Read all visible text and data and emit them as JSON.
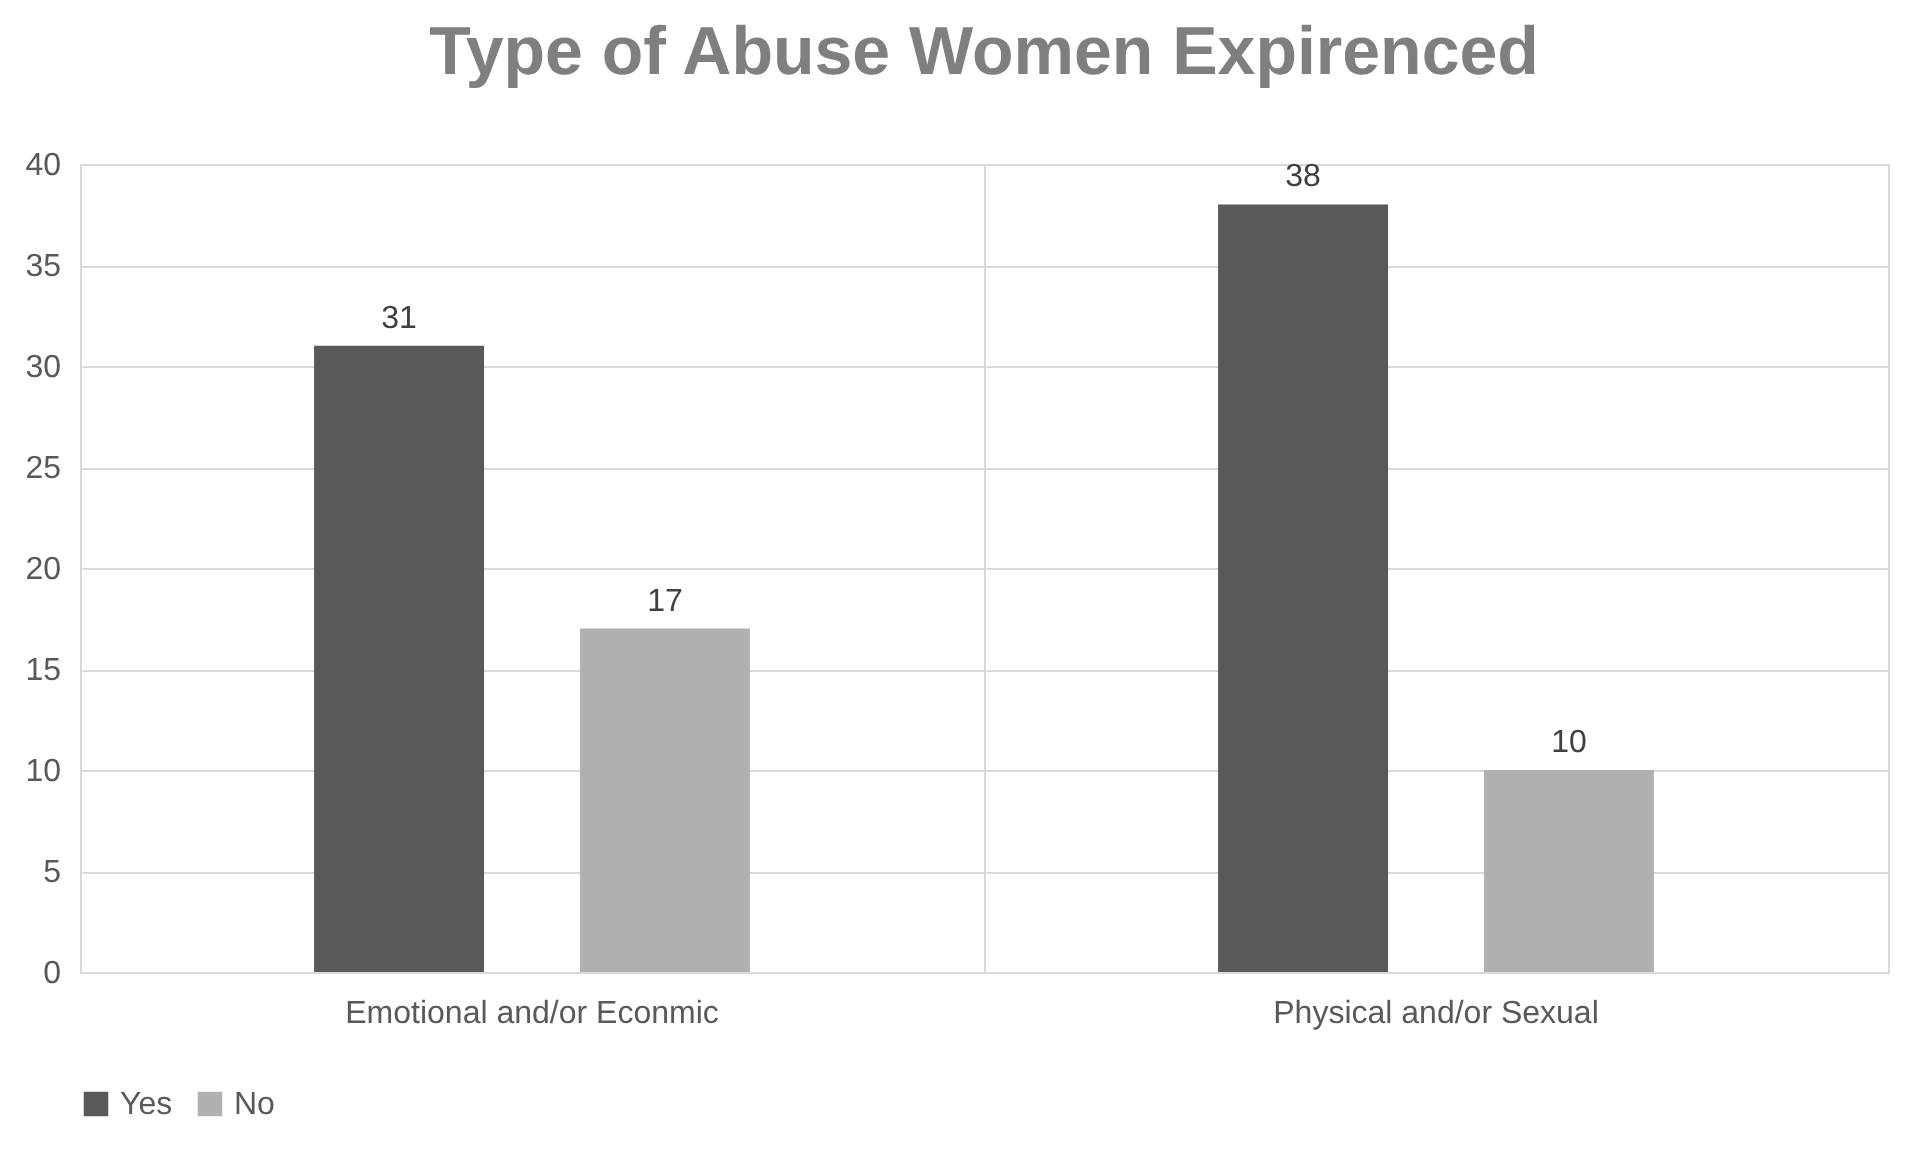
{
  "chart_data": {
    "type": "bar",
    "title": "Type of Abuse Women Expirenced",
    "categories": [
      "Emotional and/or Econmic",
      "Physical and/or Sexual"
    ],
    "series": [
      {
        "name": "Yes",
        "color": "#595959",
        "values": [
          31,
          38
        ]
      },
      {
        "name": "No",
        "color": "#b0b0b0",
        "values": [
          17,
          10
        ]
      }
    ],
    "ylim": [
      0,
      40
    ],
    "yticks": [
      0,
      5,
      10,
      15,
      20,
      25,
      30,
      35,
      40
    ],
    "grid": true,
    "legend": "bottom",
    "data_labels": true
  }
}
